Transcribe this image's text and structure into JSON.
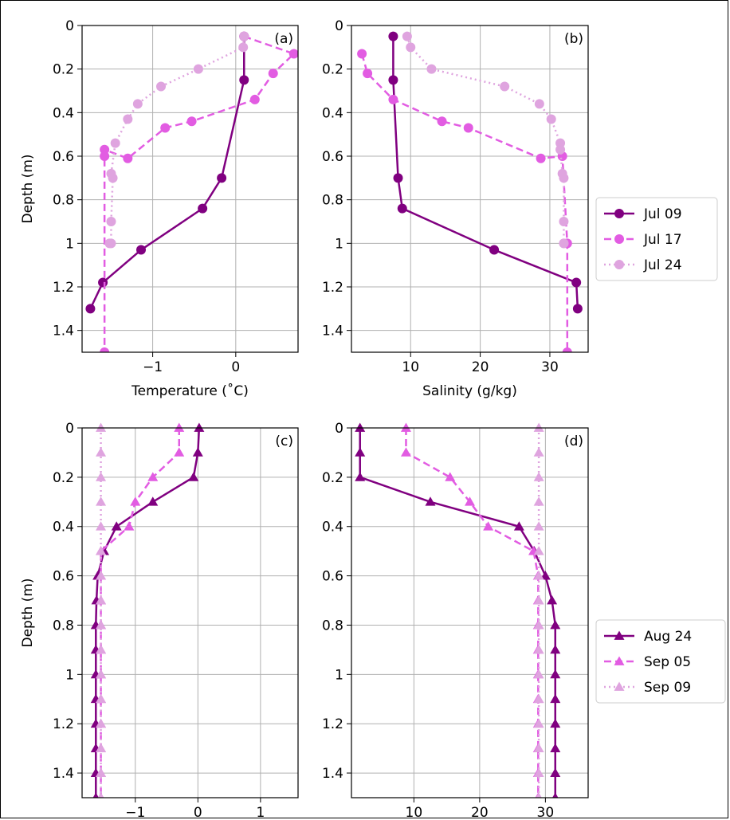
{
  "chart_data": [
    {
      "type": "line",
      "panel_label": "(a)",
      "xlabel": "Temperature (˚C)",
      "ylabel": "Depth (m)",
      "xlim": [
        -1.85,
        0.75
      ],
      "ylim": [
        1.5,
        0.0
      ],
      "xticks": [
        -1,
        0
      ],
      "yticks": [
        0.0,
        0.2,
        0.4,
        0.6,
        0.8,
        1.0,
        1.2,
        1.4
      ],
      "marker": "circle",
      "grid": true,
      "series": [
        {
          "name": "Jul 09",
          "color": "#800080",
          "dash": "solid",
          "x": [
            0.1,
            0.1,
            -0.17,
            -0.4,
            -1.14,
            -1.6,
            -1.75
          ],
          "y": [
            0.05,
            0.25,
            0.7,
            0.84,
            1.03,
            1.18,
            1.3
          ]
        },
        {
          "name": "Jul 17",
          "color": "#e25ce2",
          "dash": "dashed",
          "x": [
            0.1,
            0.7,
            0.45,
            0.23,
            -0.53,
            -0.85,
            -1.3,
            -1.58,
            -1.58,
            -1.58
          ],
          "y": [
            0.05,
            0.13,
            0.22,
            0.34,
            0.44,
            0.47,
            0.61,
            0.57,
            0.6,
            1.5
          ]
        },
        {
          "name": "Jul 24",
          "color": "#dfa4df",
          "dash": "dotted",
          "x": [
            0.1,
            0.09,
            -0.45,
            -0.9,
            -1.18,
            -1.3,
            -1.45,
            -1.5,
            -1.48,
            -1.5,
            -1.5,
            -1.52
          ],
          "y": [
            0.05,
            0.1,
            0.2,
            0.28,
            0.36,
            0.43,
            0.54,
            0.68,
            0.7,
            0.9,
            1.0,
            1.0
          ]
        }
      ]
    },
    {
      "type": "line",
      "panel_label": "(b)",
      "xlabel": "Salinity (g/kg)",
      "ylabel": "",
      "xlim": [
        1.5,
        35.5
      ],
      "ylim": [
        1.5,
        0.0
      ],
      "xticks": [
        10,
        20,
        30
      ],
      "yticks": [
        0.0,
        0.2,
        0.4,
        0.6,
        0.8,
        1.0,
        1.2,
        1.4
      ],
      "marker": "circle",
      "grid": true,
      "series": [
        {
          "name": "Jul 09",
          "color": "#800080",
          "dash": "solid",
          "x": [
            7.5,
            7.5,
            8.2,
            8.8,
            22,
            33.8,
            34
          ],
          "y": [
            0.05,
            0.25,
            0.7,
            0.84,
            1.03,
            1.18,
            1.3
          ]
        },
        {
          "name": "Jul 17",
          "color": "#e25ce2",
          "dash": "dashed",
          "x": [
            3,
            3.8,
            7.5,
            14.5,
            18.3,
            28.7,
            31.8,
            32.5,
            32.5
          ],
          "y": [
            0.13,
            0.22,
            0.34,
            0.44,
            0.47,
            0.61,
            0.6,
            1.0,
            1.5
          ]
        },
        {
          "name": "Jul 24",
          "color": "#dfa4df",
          "dash": "dotted",
          "x": [
            9.5,
            10,
            13,
            23.5,
            28.5,
            30.2,
            31.5,
            31.5,
            31.8,
            32,
            32,
            32,
            32
          ],
          "y": [
            0.05,
            0.1,
            0.2,
            0.28,
            0.36,
            0.43,
            0.54,
            0.57,
            0.68,
            0.7,
            0.9,
            1.0,
            1.0
          ]
        }
      ]
    },
    {
      "type": "line",
      "panel_label": "(c)",
      "xlabel": "Temperature (˚C)",
      "ylabel": "Depth (m)",
      "xlim": [
        -1.85,
        1.6
      ],
      "ylim": [
        1.5,
        0.0
      ],
      "xticks": [
        -1,
        0,
        1
      ],
      "yticks": [
        0.0,
        0.2,
        0.4,
        0.6,
        0.8,
        1.0,
        1.2,
        1.4
      ],
      "marker": "triangle",
      "grid": true,
      "series": [
        {
          "name": "Aug 24",
          "color": "#800080",
          "dash": "solid",
          "x": [
            0.02,
            0.0,
            -0.07,
            -0.72,
            -1.3,
            -1.5,
            -1.6,
            -1.62,
            -1.63,
            -1.63,
            -1.63,
            -1.63,
            -1.63,
            -1.63,
            -1.63,
            -1.63
          ],
          "y": [
            0.0,
            0.1,
            0.2,
            0.3,
            0.4,
            0.5,
            0.6,
            0.7,
            0.8,
            0.9,
            1.0,
            1.1,
            1.2,
            1.3,
            1.4,
            1.5
          ]
        },
        {
          "name": "Sep 05",
          "color": "#e25ce2",
          "dash": "dashed",
          "x": [
            -0.3,
            -0.3,
            -0.72,
            -1.0,
            -1.1,
            -1.55,
            -1.55,
            -1.55,
            -1.55,
            -1.55,
            -1.55,
            -1.55,
            -1.55,
            -1.55,
            -1.55,
            -1.55
          ],
          "y": [
            0.0,
            0.1,
            0.2,
            0.3,
            0.4,
            0.5,
            0.6,
            0.7,
            0.8,
            0.9,
            1.0,
            1.1,
            1.2,
            1.3,
            1.4,
            1.5
          ]
        },
        {
          "name": "Sep 09",
          "color": "#dfa4df",
          "dash": "dotted",
          "x": [
            -1.55,
            -1.55,
            -1.55,
            -1.55,
            -1.55,
            -1.55,
            -1.55,
            -1.55,
            -1.55,
            -1.55,
            -1.55,
            -1.55,
            -1.55,
            -1.55,
            -1.55,
            -1.55
          ],
          "y": [
            0.0,
            0.1,
            0.2,
            0.3,
            0.4,
            0.5,
            0.6,
            0.7,
            0.8,
            0.9,
            1.0,
            1.1,
            1.2,
            1.3,
            1.4,
            1.5
          ]
        }
      ]
    },
    {
      "type": "line",
      "panel_label": "(d)",
      "xlabel": "Salinity (g/kg)",
      "ylabel": "",
      "xlim": [
        0.5,
        36.5
      ],
      "ylim": [
        1.5,
        0.0
      ],
      "xticks": [
        10,
        20,
        30
      ],
      "yticks": [
        0.0,
        0.2,
        0.4,
        0.6,
        0.8,
        1.0,
        1.2,
        1.4
      ],
      "marker": "triangle",
      "grid": true,
      "series": [
        {
          "name": "Aug 24",
          "color": "#800080",
          "dash": "solid",
          "x": [
            1.8,
            1.8,
            1.8,
            12.5,
            26,
            28.3,
            30,
            31,
            31.5,
            31.5,
            31.5,
            31.5,
            31.5,
            31.5,
            31.5,
            31.5
          ],
          "y": [
            0.0,
            0.1,
            0.2,
            0.3,
            0.4,
            0.5,
            0.6,
            0.7,
            0.8,
            0.9,
            1.0,
            1.1,
            1.2,
            1.3,
            1.4,
            1.5
          ]
        },
        {
          "name": "Sep 05",
          "color": "#e25ce2",
          "dash": "dashed",
          "x": [
            8.8,
            8.8,
            15.5,
            18.5,
            21.3,
            28.2,
            28.9,
            28.9,
            28.9,
            28.9,
            28.9,
            28.9,
            28.9,
            28.9,
            28.9,
            28.9
          ],
          "y": [
            0.0,
            0.1,
            0.2,
            0.3,
            0.4,
            0.5,
            0.6,
            0.7,
            0.8,
            0.9,
            1.0,
            1.1,
            1.2,
            1.3,
            1.4,
            1.5
          ]
        },
        {
          "name": "Sep 09",
          "color": "#dfa4df",
          "dash": "dotted",
          "x": [
            29,
            29,
            29,
            29,
            29,
            29,
            29,
            29,
            29,
            29,
            29,
            29,
            29,
            29,
            29,
            29
          ],
          "y": [
            0.0,
            0.1,
            0.2,
            0.3,
            0.4,
            0.5,
            0.6,
            0.7,
            0.8,
            0.9,
            1.0,
            1.1,
            1.2,
            1.3,
            1.4,
            1.5
          ]
        }
      ]
    }
  ],
  "legends": [
    {
      "placement": "right",
      "entries": [
        "Jul 09",
        "Jul 17",
        "Jul 24"
      ]
    },
    {
      "placement": "right",
      "entries": [
        "Aug 24",
        "Sep 05",
        "Sep 09"
      ]
    }
  ]
}
